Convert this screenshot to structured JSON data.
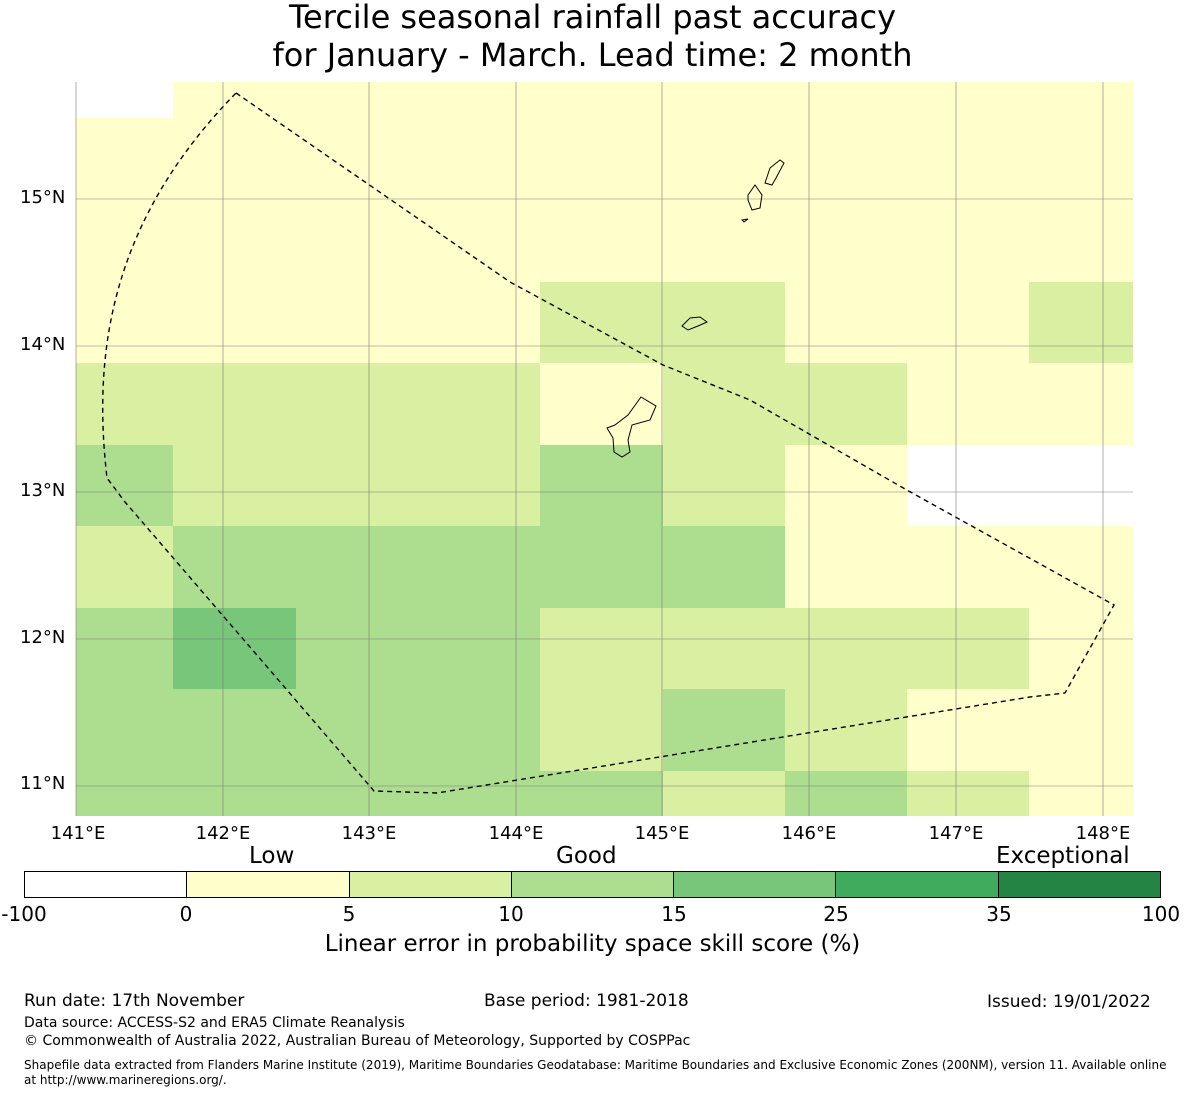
{
  "title": {
    "line1": "Tercile seasonal rainfall past accuracy",
    "line2": "for January - March. Lead time: 2 month"
  },
  "map": {
    "lon_range": [
      141.0,
      148.2
    ],
    "lat_range": [
      10.8,
      15.8
    ],
    "grid": true,
    "x_ticks": [
      "141°E",
      "142°E",
      "143°E",
      "144°E",
      "145°E",
      "146°E",
      "147°E",
      "148°E"
    ],
    "y_ticks": [
      "15°N",
      "14°N",
      "13°N",
      "12°N",
      "11°N"
    ]
  },
  "legend": {
    "categories": [
      "Low",
      "Good",
      "Exceptional"
    ],
    "bins": [
      "-100",
      "0",
      "5",
      "10",
      "15",
      "25",
      "35",
      "100"
    ],
    "colors": [
      "#ffffff",
      "#ffffcc",
      "#d9f0a3",
      "#addd8e",
      "#78c679",
      "#41ab5d",
      "#238443"
    ],
    "label": "Linear error in probability space skill score (%)"
  },
  "footer": {
    "run_date": "Run date: 17th November",
    "base_period": "Base period: 1981-2018",
    "issued": "Issued: 19/01/2022",
    "data_source": "Data source: ACCESS-S2 and ERA5 Climate Reanalysis",
    "copyright": "© Commonwealth of Australia 2022, Australian Bureau of Meteorology, Supported by COSPPac",
    "shapefile_line1": "Shapefile data extracted from Flanders Marine Institute (2019), Maritime Boundaries Geodatabase: Maritime Boundaries and Exclusive Economic Zones (200NM), version 11. Available online",
    "shapefile_line2": "at http://www.marineregions.org/."
  }
}
